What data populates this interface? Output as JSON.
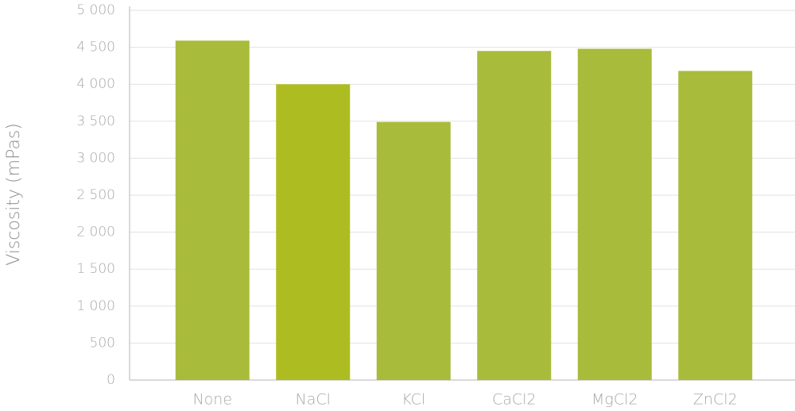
{
  "chart_data": {
    "type": "bar",
    "y_label": "Viscosity (mPas)",
    "categories": [
      "None",
      "NaCl",
      "KCl",
      "CaCl2",
      "MgCl2",
      "ZnCl2"
    ],
    "values": [
      4590,
      4000,
      3490,
      4450,
      4480,
      4180
    ],
    "colors": [
      "#a9bb3b",
      "#adbd21",
      "#a9bb3b",
      "#a9bb3b",
      "#a9bb3b",
      "#a9bb3b"
    ],
    "ylim": [
      0,
      5000
    ],
    "yticks": [
      0,
      500,
      {
        "value": 1000,
        "label": "1 000"
      },
      {
        "value": 1500,
        "label": "1 500"
      },
      {
        "value": 2000,
        "label": "2 000"
      },
      {
        "value": 2500,
        "label": "2 500"
      },
      {
        "value": 3000,
        "label": "3 000"
      },
      {
        "value": 3500,
        "label": "3 500"
      },
      {
        "value": 4000,
        "label": "4 000"
      },
      {
        "value": 4500,
        "label": "4 500"
      },
      {
        "value": 5000,
        "label": "5 000"
      }
    ],
    "grid": true
  }
}
